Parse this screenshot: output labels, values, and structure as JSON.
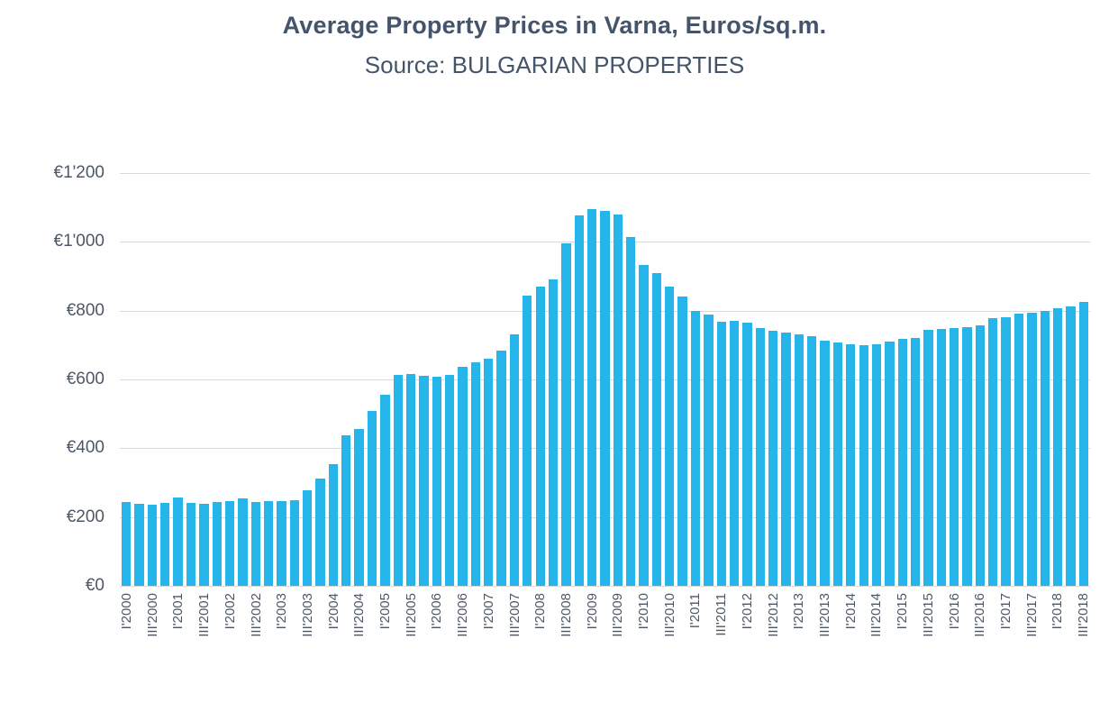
{
  "colors": {
    "bar": "#26B5EA",
    "title_text": "#44546A",
    "axis_text": "#4D5766",
    "gridline": "#D9D9D9",
    "background": "#FFFFFF"
  },
  "chart_data": {
    "type": "bar",
    "title": "Average Property Prices in Varna, Euros/sq.m.",
    "subtitle": "Source: BULGARIAN PROPERTIES",
    "xlabel": "",
    "ylabel": "",
    "ymax": 1200,
    "ylim": [
      0,
      1200
    ],
    "grid": "horizontal",
    "legend": "none",
    "y_ticks": [
      {
        "value": 0,
        "label": "€0"
      },
      {
        "value": 200,
        "label": "€200"
      },
      {
        "value": 400,
        "label": "€400"
      },
      {
        "value": 600,
        "label": "€600"
      },
      {
        "value": 800,
        "label": "€800"
      },
      {
        "value": 1000,
        "label": "€1'000"
      },
      {
        "value": 1200,
        "label": "€1'200"
      }
    ],
    "x_tick_every": 2,
    "x_tick_labels": [
      "I'2000",
      "III'2000",
      "I'2001",
      "III'2001",
      "I'2002",
      "III'2002",
      "I'2003",
      "III'2003",
      "I'2004",
      "III'2004",
      "I'2005",
      "III'2005",
      "I'2006",
      "III'2006",
      "I'2007",
      "III'2007",
      "I'2008",
      "III'2008",
      "I'2009",
      "III'2009",
      "I'2010",
      "III'2010",
      "I'2011",
      "III'2011",
      "I'2012",
      "III'2012",
      "I'2013",
      "III'2013",
      "I'2014",
      "III'2014",
      "I'2015",
      "III'2015",
      "I'2016",
      "III'2016",
      "I'2017",
      "III'2017",
      "I'2018",
      "III'2018"
    ],
    "x": [
      "I'2000",
      "II'2000",
      "III'2000",
      "IV'2000",
      "I'2001",
      "II'2001",
      "III'2001",
      "IV'2001",
      "I'2002",
      "II'2002",
      "III'2002",
      "IV'2002",
      "I'2003",
      "II'2003",
      "III'2003",
      "IV'2003",
      "I'2004",
      "II'2004",
      "III'2004",
      "IV'2004",
      "I'2005",
      "II'2005",
      "III'2005",
      "IV'2005",
      "I'2006",
      "II'2006",
      "III'2006",
      "IV'2006",
      "I'2007",
      "II'2007",
      "III'2007",
      "IV'2007",
      "I'2008",
      "II'2008",
      "III'2008",
      "IV'2008",
      "I'2009",
      "II'2009",
      "III'2009",
      "IV'2009",
      "I'2010",
      "II'2010",
      "III'2010",
      "IV'2010",
      "I'2011",
      "II'2011",
      "III'2011",
      "IV'2011",
      "I'2012",
      "II'2012",
      "III'2012",
      "IV'2012",
      "I'2013",
      "II'2013",
      "III'2013",
      "IV'2013",
      "I'2014",
      "II'2014",
      "III'2014",
      "IV'2014",
      "I'2015",
      "II'2015",
      "III'2015",
      "IV'2015",
      "I'2016",
      "II'2016",
      "III'2016",
      "IV'2016",
      "I'2017",
      "II'2017",
      "III'2017",
      "IV'2017",
      "I'2018",
      "II'2018",
      "III'2018"
    ],
    "values": [
      245,
      239,
      237,
      241,
      257,
      241,
      239,
      243,
      246,
      254,
      245,
      247,
      246,
      250,
      278,
      311,
      355,
      438,
      455,
      508,
      555,
      612,
      616,
      611,
      608,
      613,
      638,
      649,
      661,
      684,
      731,
      843,
      869,
      891,
      996,
      1076,
      1095,
      1089,
      1079,
      1013,
      934,
      908,
      870,
      842,
      800,
      789,
      768,
      771,
      764,
      750,
      741,
      736,
      731,
      726,
      714,
      708,
      702,
      700,
      703,
      709,
      717,
      721,
      745,
      748,
      750,
      753,
      757,
      778,
      782,
      790,
      794,
      798,
      806,
      813,
      825
    ]
  }
}
